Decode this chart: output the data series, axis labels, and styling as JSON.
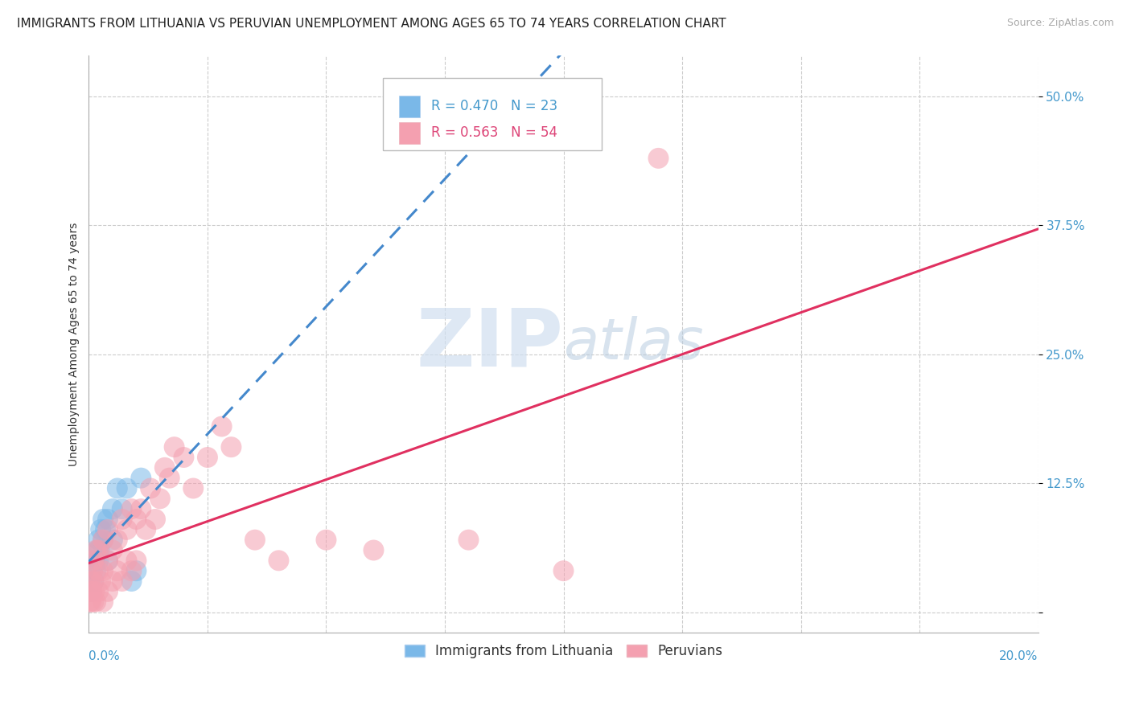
{
  "title": "IMMIGRANTS FROM LITHUANIA VS PERUVIAN UNEMPLOYMENT AMONG AGES 65 TO 74 YEARS CORRELATION CHART",
  "source": "Source: ZipAtlas.com",
  "ylabel": "Unemployment Among Ages 65 to 74 years",
  "xlim": [
    0,
    0.2
  ],
  "ylim": [
    -0.02,
    0.54
  ],
  "yticks": [
    0.0,
    0.125,
    0.25,
    0.375,
    0.5
  ],
  "ytick_labels": [
    "",
    "12.5%",
    "25.0%",
    "37.5%",
    "50.0%"
  ],
  "title_fontsize": 11,
  "axis_label_fontsize": 10,
  "tick_fontsize": 11,
  "legend_fontsize": 12,
  "source_fontsize": 9,
  "background_color": "#ffffff",
  "grid_color": "#cccccc",
  "blue_color": "#7ab8e8",
  "pink_color": "#f4a0b0",
  "blue_line_color": "#4488cc",
  "pink_line_color": "#e03060",
  "blue_text_color": "#4499cc",
  "pink_text_color": "#dd4477",
  "watermark_color": "#d0dff0",
  "series": [
    {
      "name": "Immigrants from Lithuania",
      "R": 0.47,
      "N": 23,
      "x": [
        0.0005,
        0.0008,
        0.001,
        0.0012,
        0.0015,
        0.0018,
        0.002,
        0.002,
        0.0022,
        0.0025,
        0.003,
        0.003,
        0.0035,
        0.004,
        0.004,
        0.005,
        0.005,
        0.006,
        0.007,
        0.008,
        0.009,
        0.01,
        0.011
      ],
      "y": [
        0.02,
        0.04,
        0.03,
        0.05,
        0.04,
        0.06,
        0.05,
        0.07,
        0.06,
        0.08,
        0.07,
        0.09,
        0.08,
        0.05,
        0.09,
        0.07,
        0.1,
        0.12,
        0.1,
        0.12,
        0.03,
        0.04,
        0.13
      ]
    },
    {
      "name": "Peruvians",
      "R": 0.563,
      "N": 54,
      "x": [
        0.0002,
        0.0003,
        0.0005,
        0.0005,
        0.0007,
        0.0008,
        0.001,
        0.001,
        0.001,
        0.0012,
        0.0015,
        0.0015,
        0.002,
        0.002,
        0.002,
        0.0025,
        0.003,
        0.003,
        0.003,
        0.004,
        0.004,
        0.004,
        0.005,
        0.005,
        0.006,
        0.006,
        0.007,
        0.007,
        0.008,
        0.008,
        0.009,
        0.009,
        0.01,
        0.01,
        0.011,
        0.012,
        0.013,
        0.014,
        0.015,
        0.016,
        0.017,
        0.018,
        0.02,
        0.022,
        0.025,
        0.028,
        0.03,
        0.035,
        0.04,
        0.05,
        0.06,
        0.08,
        0.1,
        0.12
      ],
      "y": [
        0.01,
        0.02,
        0.01,
        0.03,
        0.02,
        0.04,
        0.01,
        0.03,
        0.05,
        0.02,
        0.01,
        0.06,
        0.02,
        0.04,
        0.06,
        0.03,
        0.01,
        0.04,
        0.07,
        0.02,
        0.05,
        0.08,
        0.03,
        0.06,
        0.04,
        0.07,
        0.03,
        0.09,
        0.05,
        0.08,
        0.04,
        0.1,
        0.05,
        0.09,
        0.1,
        0.08,
        0.12,
        0.09,
        0.11,
        0.14,
        0.13,
        0.16,
        0.15,
        0.12,
        0.15,
        0.18,
        0.16,
        0.07,
        0.05,
        0.07,
        0.06,
        0.07,
        0.04,
        0.44
      ]
    }
  ]
}
